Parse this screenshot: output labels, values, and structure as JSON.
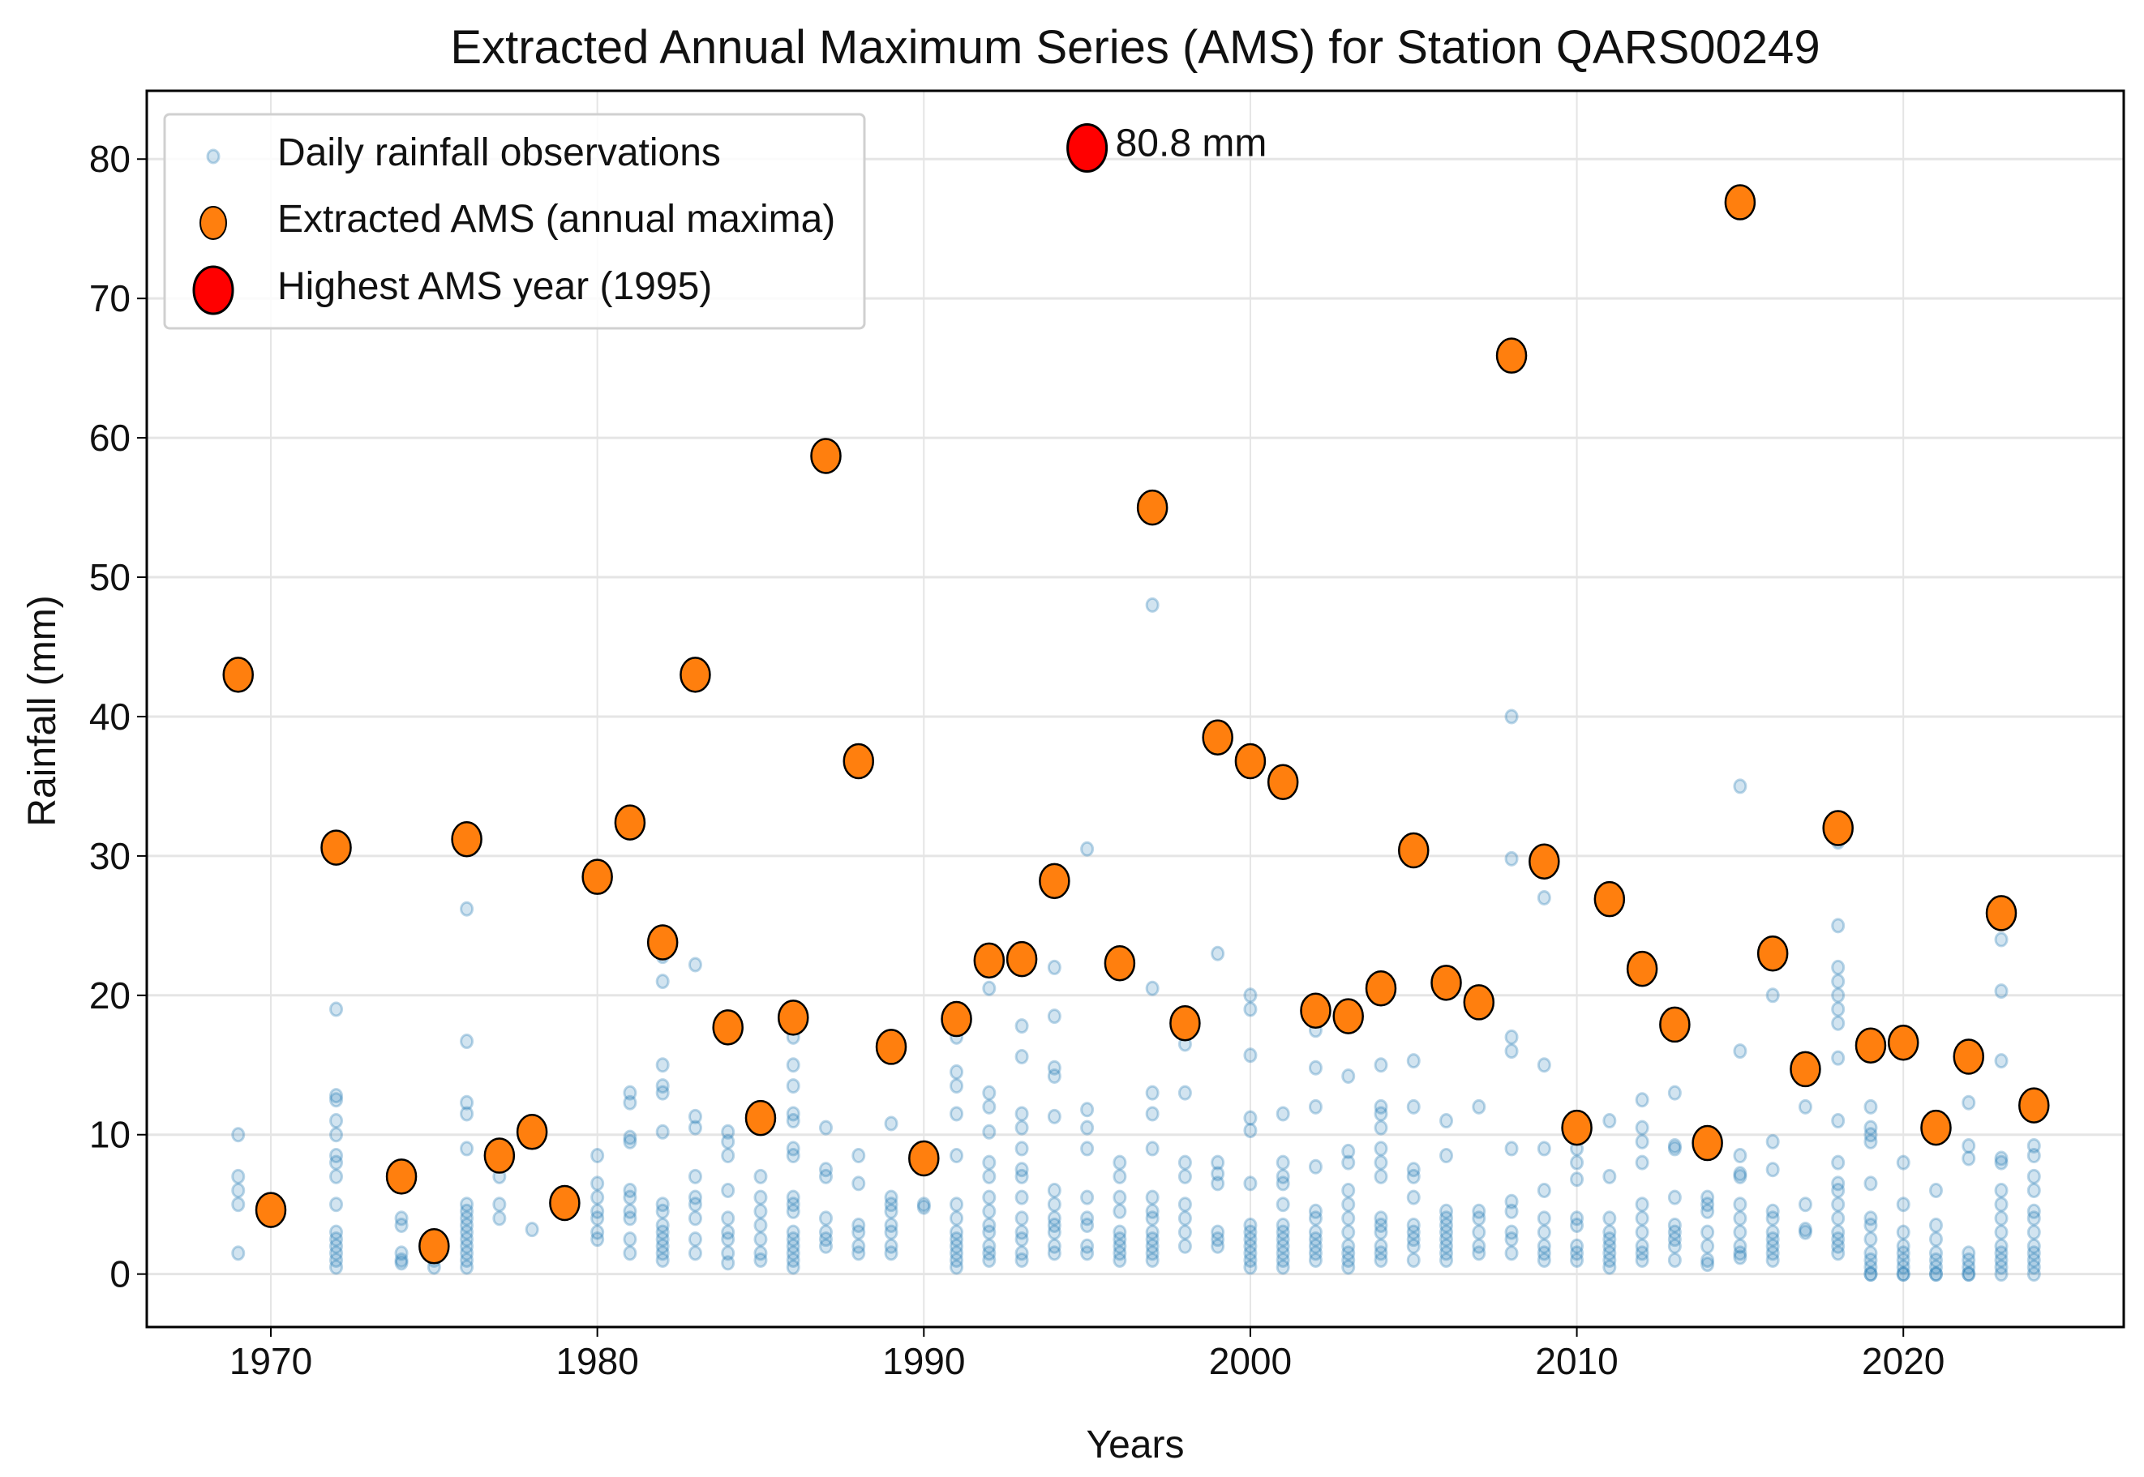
{
  "chart_data": {
    "type": "scatter",
    "title": "Extracted Annual Maximum Series (AMS) for Station QARS00249",
    "xlabel": "Years",
    "ylabel": "Rainfall (mm)",
    "xlim": [
      1966.2,
      2026.75
    ],
    "ylim": [
      -3.8,
      84.9
    ],
    "xticks": [
      1970,
      1980,
      1990,
      2000,
      2010,
      2020
    ],
    "yticks": [
      0,
      10,
      20,
      30,
      40,
      50,
      60,
      70,
      80
    ],
    "grid": true,
    "legend_position": "top-left",
    "legend": [
      {
        "label": "Daily rainfall observations",
        "marker": "small-blue-circle"
      },
      {
        "label": "Extracted AMS (annual maxima)",
        "marker": "orange-circle"
      },
      {
        "label": "Highest AMS year (1995)",
        "marker": "red-circle"
      }
    ],
    "annotation": {
      "text": "80.8 mm",
      "x": 1995,
      "y": 80.8
    },
    "colors": {
      "observations": "#1f77b4",
      "ams": "#ff7f0e",
      "highest": "#ff0000",
      "edge": "#000000",
      "grid": "#e5e5e5"
    },
    "highest": {
      "year": 1995,
      "value": 80.8
    },
    "ams": {
      "years": [
        1969,
        1970,
        1972,
        1974,
        1975,
        1976,
        1977,
        1978,
        1979,
        1980,
        1981,
        1982,
        1983,
        1984,
        1985,
        1986,
        1987,
        1988,
        1989,
        1990,
        1991,
        1992,
        1993,
        1994,
        1996,
        1997,
        1998,
        1999,
        2000,
        2001,
        2002,
        2003,
        2004,
        2005,
        2006,
        2007,
        2008,
        2009,
        2010,
        2011,
        2012,
        2013,
        2014,
        2015,
        2016,
        2017,
        2018,
        2019,
        2020,
        2021,
        2022,
        2023,
        2024
      ],
      "values": [
        43.0,
        4.6,
        30.6,
        7.0,
        2.0,
        31.2,
        8.5,
        10.2,
        5.1,
        28.5,
        32.4,
        23.8,
        43.0,
        17.7,
        11.2,
        18.4,
        58.7,
        36.8,
        16.3,
        8.3,
        18.3,
        22.5,
        22.6,
        28.2,
        22.3,
        55.0,
        18.0,
        38.5,
        36.8,
        35.3,
        18.9,
        18.5,
        20.5,
        30.4,
        20.9,
        19.5,
        65.9,
        29.6,
        10.5,
        26.9,
        21.9,
        17.9,
        9.4,
        76.9,
        23.0,
        14.7,
        32.0,
        16.4,
        16.6,
        10.5,
        15.6,
        25.9,
        12.1
      ]
    },
    "observations": {
      "1969": [
        10,
        7,
        6,
        5,
        1.5
      ],
      "1970": [
        4.5,
        4
      ],
      "1972": [
        19,
        12.8,
        12.5,
        11,
        10,
        8.5,
        8,
        7,
        5,
        3,
        2.5,
        2,
        1.5,
        1,
        0.5
      ],
      "1974": [
        4,
        3.5,
        1.5,
        1,
        0.8
      ],
      "1975": [
        0.5,
        1
      ],
      "1976": [
        26.2,
        16.7,
        12.3,
        11.5,
        9,
        5,
        4.5,
        4,
        3.5,
        3,
        2.5,
        2,
        1.5,
        1,
        0.5
      ],
      "1977": [
        7,
        5,
        4
      ],
      "1978": [
        3.2
      ],
      "1979": [
        4.5,
        4.8
      ],
      "1980": [
        8.5,
        6.5,
        5.5,
        4.5,
        4,
        3,
        2.5
      ],
      "1981": [
        13,
        12.3,
        9.8,
        9.5,
        6,
        5.5,
        4.5,
        4,
        2.5,
        1.5
      ],
      "1982": [
        22.8,
        21,
        15,
        13.5,
        13,
        10.2,
        5,
        4.5,
        3.5,
        3,
        2.5,
        2,
        1.5,
        1
      ],
      "1983": [
        22.2,
        11.3,
        10.5,
        7,
        5.5,
        5,
        4,
        2.5,
        1.5
      ],
      "1984": [
        10.2,
        9.5,
        8.5,
        6,
        4,
        3,
        2.5,
        1.5,
        0.8
      ],
      "1985": [
        10.5,
        7,
        5.5,
        4.5,
        3.5,
        2.5,
        1.5,
        1
      ],
      "1986": [
        17,
        15,
        13.5,
        11.5,
        11,
        9,
        8.5,
        5.5,
        5,
        4.5,
        3,
        2.5,
        2,
        1.5,
        1,
        0.5
      ],
      "1987": [
        10.5,
        7.5,
        7,
        4,
        3,
        2.5,
        2
      ],
      "1988": [
        8.5,
        6.5,
        3.5,
        3,
        2,
        1.5
      ],
      "1989": [
        10.8,
        5.5,
        5,
        4.5,
        3.5,
        3,
        2,
        1.5
      ],
      "1990": [
        5,
        4.8
      ],
      "1991": [
        17,
        14.5,
        13.5,
        11.5,
        8.5,
        5,
        4,
        3,
        2.5,
        2,
        1.5,
        1,
        0.5
      ],
      "1992": [
        20.5,
        13,
        12,
        10.2,
        8,
        7,
        5.5,
        4.5,
        3.5,
        3,
        2,
        1.5,
        1
      ],
      "1993": [
        17.8,
        15.6,
        11.5,
        10.5,
        9,
        7.5,
        7,
        5.5,
        4,
        3,
        2.5,
        1.5,
        1
      ],
      "1994": [
        22,
        18.5,
        14.8,
        14.2,
        11.3,
        6,
        5,
        4,
        3.5,
        3,
        2,
        1.5
      ],
      "1995": [
        30.5,
        11.8,
        10.5,
        9,
        5.5,
        4,
        3.5,
        2,
        1.5
      ],
      "1996": [
        8,
        7,
        5.5,
        4.5,
        3,
        2.5,
        2,
        1.5,
        1
      ],
      "1997": [
        48,
        20.5,
        13,
        11.5,
        9,
        5.5,
        4.5,
        4,
        3,
        2.5,
        2,
        1.5,
        1
      ],
      "1998": [
        16.5,
        13,
        8,
        7,
        5,
        4,
        3,
        2
      ],
      "1999": [
        23,
        8,
        7.2,
        6.5,
        3,
        2.5,
        2
      ],
      "2000": [
        20,
        19,
        15.7,
        11.2,
        10.3,
        6.5,
        3.5,
        3,
        2.5,
        2,
        1.5,
        1,
        0.5
      ],
      "2001": [
        11.5,
        8,
        7,
        6.5,
        5,
        3.5,
        3,
        2.5,
        2,
        1.5,
        1,
        0.5
      ],
      "2002": [
        17.5,
        14.8,
        12,
        7.7,
        4.5,
        4,
        3,
        2.5,
        2,
        1.5,
        1
      ],
      "2003": [
        14.2,
        8.8,
        8,
        6,
        5,
        4,
        3,
        2,
        1.5,
        1,
        0.5
      ],
      "2004": [
        15,
        12,
        11.5,
        10.5,
        9,
        8,
        7,
        4,
        3.5,
        3,
        2,
        1.5,
        1
      ],
      "2005": [
        15.3,
        12,
        7.5,
        7,
        5.5,
        3.5,
        3,
        2.5,
        2,
        1
      ],
      "2006": [
        11,
        8.5,
        4.5,
        4,
        3.5,
        3,
        2.5,
        2,
        1.5,
        1
      ],
      "2007": [
        12,
        4.5,
        4,
        3,
        2,
        1.5
      ],
      "2008": [
        40,
        29.8,
        17,
        16,
        9,
        5.2,
        4.5,
        3,
        2.5,
        1.5
      ],
      "2009": [
        27,
        15,
        9,
        6,
        4,
        3,
        2,
        1.5,
        1
      ],
      "2010": [
        9,
        8,
        6.8,
        4,
        3.5,
        2,
        1.5,
        1
      ],
      "2011": [
        11,
        7,
        4,
        3,
        2.5,
        2,
        1.5,
        1,
        0.5
      ],
      "2012": [
        12.5,
        10.5,
        9.5,
        8,
        5,
        4,
        3,
        2,
        1.5,
        1
      ],
      "2013": [
        13,
        9.2,
        9,
        5.5,
        3.5,
        3,
        2.5,
        2,
        1
      ],
      "2014": [
        5.5,
        5,
        4.5,
        3,
        2,
        1,
        0.7
      ],
      "2015": [
        35,
        16,
        8.5,
        7.2,
        7,
        5,
        4,
        3,
        2,
        1.5,
        1.2
      ],
      "2016": [
        20,
        9.5,
        7.5,
        4.5,
        4,
        3,
        2.5,
        2,
        1.5,
        1
      ],
      "2017": [
        12,
        5,
        3.2,
        3
      ],
      "2018": [
        31,
        25,
        22,
        21,
        20,
        19,
        18,
        15.5,
        11,
        8,
        6.5,
        6,
        5,
        4,
        3,
        2.5,
        2,
        1.5
      ],
      "2019": [
        12,
        10.5,
        10,
        9.5,
        6.5,
        4,
        3.5,
        2.5,
        1.5,
        1,
        0.5,
        0,
        0
      ],
      "2020": [
        8,
        5,
        3,
        2,
        1.5,
        1,
        0.5,
        0,
        0
      ],
      "2021": [
        6,
        3.5,
        2.5,
        1.5,
        1,
        0.5,
        0,
        0
      ],
      "2022": [
        12.3,
        9.2,
        8.3,
        1.5,
        1,
        0.5,
        0,
        0
      ],
      "2023": [
        24,
        20.3,
        15.3,
        8.3,
        8,
        6,
        5,
        4,
        3,
        2,
        1.5,
        1,
        0.5,
        0
      ],
      "2024": [
        9.2,
        8.5,
        7,
        6,
        4.5,
        4,
        3,
        2,
        1.5,
        1,
        0.5,
        0
      ]
    }
  }
}
